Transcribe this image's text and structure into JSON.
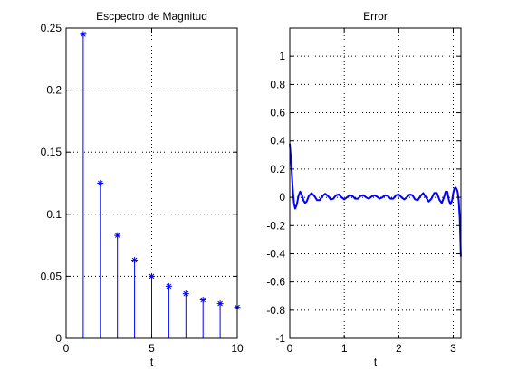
{
  "chart_data": [
    {
      "type": "stem",
      "title": "Escpectro de Magnitud",
      "xlabel": "t",
      "ylabel": "",
      "xlim": [
        0,
        10
      ],
      "ylim": [
        0,
        0.25
      ],
      "xticks": [
        "0",
        "5",
        "10"
      ],
      "xtick_values": [
        0,
        5,
        10
      ],
      "yticks": [
        "0",
        "0.05",
        "0.1",
        "0.15",
        "0.2",
        "0.25"
      ],
      "ytick_values": [
        0,
        0.05,
        0.1,
        0.15,
        0.2,
        0.25
      ],
      "grid": true,
      "x": [
        1,
        2,
        3,
        4,
        5,
        6,
        7,
        8,
        9,
        10
      ],
      "y": [
        0.245,
        0.125,
        0.083,
        0.063,
        0.05,
        0.042,
        0.036,
        0.031,
        0.028,
        0.025
      ],
      "marker": "asterisk",
      "color": "#0000ff"
    },
    {
      "type": "line",
      "title": "Error",
      "xlabel": "t",
      "ylabel": "",
      "xlim": [
        0,
        3.1416
      ],
      "ylim": [
        -1,
        1.2
      ],
      "xticks": [
        "0",
        "1",
        "2",
        "3"
      ],
      "xtick_values": [
        0,
        1,
        2,
        3
      ],
      "yticks": [
        "-1",
        "-0.8",
        "-0.6",
        "-0.4",
        "-0.2",
        "0",
        "0.2",
        "0.4",
        "0.6",
        "0.8",
        "1"
      ],
      "ytick_values": [
        -1,
        -0.8,
        -0.6,
        -0.4,
        -0.2,
        0,
        0.2,
        0.4,
        0.6,
        0.8,
        1
      ],
      "grid": true,
      "color": "#0000ff",
      "x": [
        0,
        0.02,
        0.04,
        0.06,
        0.08,
        0.1,
        0.13,
        0.16,
        0.19,
        0.22,
        0.25,
        0.28,
        0.31,
        0.35,
        0.4,
        0.45,
        0.5,
        0.55,
        0.6,
        0.65,
        0.7,
        0.75,
        0.8,
        0.85,
        0.9,
        0.95,
        1.0,
        1.05,
        1.1,
        1.15,
        1.2,
        1.25,
        1.3,
        1.35,
        1.4,
        1.45,
        1.5,
        1.55,
        1.6,
        1.65,
        1.7,
        1.75,
        1.8,
        1.85,
        1.9,
        1.95,
        2.0,
        2.05,
        2.1,
        2.15,
        2.2,
        2.25,
        2.3,
        2.35,
        2.4,
        2.45,
        2.5,
        2.55,
        2.6,
        2.65,
        2.7,
        2.75,
        2.79,
        2.83,
        2.86,
        2.89,
        2.92,
        2.95,
        2.98,
        3.0,
        3.02,
        3.04,
        3.06,
        3.08,
        3.1,
        3.12,
        3.13,
        3.14
      ],
      "y": [
        0.38,
        0.28,
        0.15,
        0.03,
        -0.05,
        -0.08,
        -0.05,
        0.01,
        0.04,
        0.02,
        -0.02,
        -0.04,
        -0.03,
        0.01,
        0.03,
        0.01,
        -0.02,
        -0.02,
        0.01,
        0.025,
        0.01,
        -0.015,
        -0.01,
        0.015,
        0.02,
        0.0,
        -0.015,
        0.0,
        0.015,
        0.01,
        -0.01,
        -0.01,
        0.01,
        0.015,
        0.0,
        -0.01,
        0.005,
        0.015,
        0.005,
        -0.01,
        0.0,
        0.015,
        0.01,
        -0.01,
        -0.01,
        0.015,
        0.02,
        0.0,
        -0.015,
        0.0,
        0.02,
        0.015,
        -0.015,
        -0.02,
        0.01,
        0.03,
        0.0,
        -0.03,
        -0.01,
        0.03,
        0.03,
        -0.02,
        -0.04,
        0.0,
        0.04,
        0.04,
        -0.02,
        -0.05,
        -0.02,
        0.03,
        0.06,
        0.07,
        0.06,
        0.04,
        -0.02,
        -0.15,
        -0.28,
        -0.42
      ]
    }
  ]
}
